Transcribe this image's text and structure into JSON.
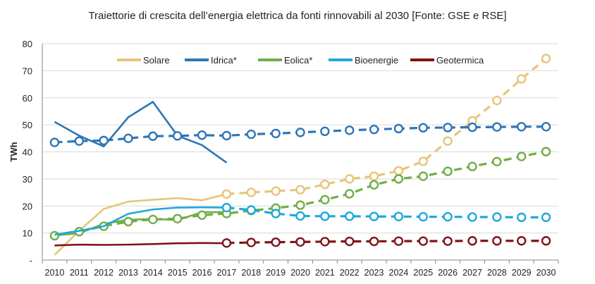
{
  "chart_data": {
    "type": "line",
    "title": "Traiettorie di crescita dell’energia elettrica da fonti rinnovabili al 2030 [Fonte: GSE e RSE]",
    "ylabel": "TWh",
    "xlabel": "",
    "ylim": [
      0,
      80
    ],
    "y_ticks": [
      0,
      10,
      20,
      30,
      40,
      50,
      60,
      70,
      80
    ],
    "y_tick_labels": [
      "-",
      "10",
      "20",
      "30",
      "40",
      "50",
      "60",
      "70",
      "80"
    ],
    "x": [
      2010,
      2011,
      2012,
      2013,
      2014,
      2015,
      2016,
      2017,
      2018,
      2019,
      2020,
      2021,
      2022,
      2023,
      2024,
      2025,
      2026,
      2027,
      2028,
      2029,
      2030
    ],
    "x_tick_labels": [
      "2010",
      "2011",
      "2012",
      "2013",
      "2014",
      "2015",
      "2016",
      "2017",
      "2018",
      "2019",
      "2020",
      "2021",
      "2022",
      "2023",
      "2024",
      "2025",
      "2026",
      "2027",
      "2028",
      "2029",
      "2030"
    ],
    "grid": "horizontal",
    "legend_position": "top",
    "series": [
      {
        "name": "Solare",
        "color": "#e6c57a",
        "historical": [
          1.9,
          10.8,
          18.9,
          21.6,
          22.3,
          22.9,
          22.1,
          24.4
        ],
        "trajectory_x": [
          2017,
          2018,
          2019,
          2020,
          2021,
          2022,
          2023,
          2024,
          2025,
          2026,
          2027,
          2028,
          2029,
          2030
        ],
        "trajectory": [
          24.4,
          25.0,
          25.5,
          26.0,
          28.0,
          30.0,
          31.0,
          33.0,
          36.5,
          44.0,
          51.5,
          59.0,
          67.0,
          74.5
        ]
      },
      {
        "name": "Idrica*",
        "color": "#2e75b6",
        "historical": [
          51.1,
          46.0,
          42.0,
          52.8,
          58.5,
          46.0,
          42.5,
          36.0
        ],
        "trajectory_x": [
          2010,
          2011,
          2012,
          2013,
          2014,
          2015,
          2016,
          2017,
          2018,
          2019,
          2020,
          2021,
          2022,
          2023,
          2024,
          2025,
          2026,
          2027,
          2028,
          2029,
          2030
        ],
        "trajectory": [
          43.5,
          44.0,
          44.2,
          45.0,
          45.8,
          45.9,
          46.2,
          46.0,
          46.5,
          46.8,
          47.2,
          47.6,
          48.0,
          48.3,
          48.6,
          48.9,
          49.0,
          49.1,
          49.2,
          49.3,
          49.3
        ]
      },
      {
        "name": "Eolica*",
        "color": "#70ad47",
        "historical": [
          9.1,
          9.9,
          13.4,
          14.9,
          15.2,
          14.8,
          17.7,
          17.7
        ],
        "trajectory_x": [
          2010,
          2011,
          2012,
          2013,
          2014,
          2015,
          2016,
          2017,
          2018,
          2019,
          2020,
          2021,
          2022,
          2023,
          2024,
          2025,
          2026,
          2027,
          2028,
          2029,
          2030
        ],
        "trajectory": [
          9.0,
          10.5,
          12.5,
          14.2,
          15.0,
          15.3,
          16.6,
          17.2,
          18.3,
          19.2,
          20.3,
          22.3,
          24.5,
          27.8,
          30.0,
          31.0,
          32.8,
          34.6,
          36.4,
          38.3,
          40.1
        ]
      },
      {
        "name": "Bioenergie",
        "color": "#1fa8dc",
        "historical": [
          9.4,
          10.8,
          12.5,
          17.1,
          18.7,
          19.4,
          19.5,
          19.4
        ],
        "trajectory_x": [
          2017,
          2018,
          2019,
          2020,
          2021,
          2022,
          2023,
          2024,
          2025,
          2026,
          2027,
          2028,
          2029,
          2030
        ],
        "trajectory": [
          19.4,
          18.5,
          17.2,
          16.3,
          16.2,
          16.2,
          16.1,
          16.1,
          16.0,
          16.0,
          15.9,
          15.9,
          15.8,
          15.8
        ]
      },
      {
        "name": "Geotermica",
        "color": "#7f1416",
        "historical": [
          5.4,
          5.7,
          5.6,
          5.7,
          5.9,
          6.2,
          6.3,
          6.2
        ],
        "trajectory_x": [
          2017,
          2018,
          2019,
          2020,
          2021,
          2022,
          2023,
          2024,
          2025,
          2026,
          2027,
          2028,
          2029,
          2030
        ],
        "trajectory": [
          6.3,
          6.5,
          6.6,
          6.7,
          6.8,
          6.9,
          6.9,
          7.0,
          7.0,
          7.0,
          7.1,
          7.1,
          7.1,
          7.1
        ]
      }
    ]
  }
}
